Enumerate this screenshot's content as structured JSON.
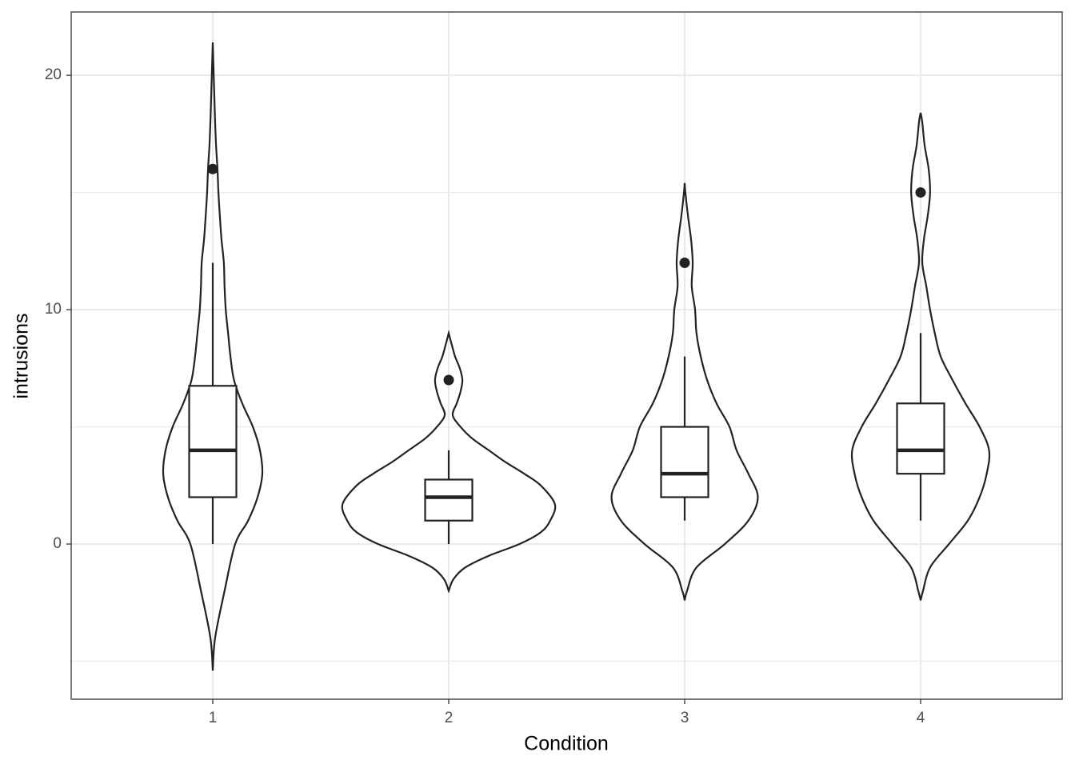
{
  "chart_data": {
    "type": "violin",
    "xlabel": "Condition",
    "ylabel": "intrusions",
    "categories": [
      "1",
      "2",
      "3",
      "4"
    ],
    "ylim": [
      -6.62,
      22.7
    ],
    "yticks": [
      0,
      10,
      20
    ],
    "minor_yticks": [
      -5,
      5,
      15
    ],
    "grid": true,
    "color": "#222222",
    "boxes": [
      {
        "whisker_low": 0,
        "q1": 2,
        "median": 4,
        "q3": 6.75,
        "whisker_high": 12,
        "outliers": [
          16
        ]
      },
      {
        "whisker_low": 0,
        "q1": 1,
        "median": 2,
        "q3": 2.75,
        "whisker_high": 4,
        "outliers": [
          7
        ]
      },
      {
        "whisker_low": 1,
        "q1": 2,
        "median": 3,
        "q3": 5,
        "whisker_high": 8,
        "outliers": [
          12
        ]
      },
      {
        "whisker_low": 1,
        "q1": 3,
        "median": 4,
        "q3": 6,
        "whisker_high": 9,
        "outliers": [
          15
        ]
      }
    ],
    "violins": [
      {
        "y": [
          -5.4,
          -4,
          -2,
          0,
          1,
          2,
          3,
          4,
          5,
          6,
          7,
          8,
          9,
          10,
          11,
          12,
          13,
          14,
          15,
          16,
          17,
          18,
          19,
          20,
          21.4
        ],
        "width": [
          0,
          0.01,
          0.05,
          0.095,
          0.15,
          0.19,
          0.21,
          0.2,
          0.17,
          0.125,
          0.09,
          0.075,
          0.065,
          0.055,
          0.05,
          0.047,
          0.037,
          0.03,
          0.024,
          0.02,
          0.014,
          0.01,
          0.007,
          0.004,
          0
        ]
      },
      {
        "y": [
          -2,
          -1.5,
          -1,
          -0.5,
          0,
          0.5,
          1,
          1.7,
          2.5,
          3,
          3.5,
          4,
          4.5,
          5,
          5.5,
          6,
          6.5,
          7,
          7.5,
          8,
          8.5,
          9
        ],
        "width": [
          0,
          0.02,
          0.07,
          0.17,
          0.3,
          0.39,
          0.43,
          0.45,
          0.39,
          0.32,
          0.24,
          0.17,
          0.1,
          0.05,
          0.017,
          0.034,
          0.05,
          0.058,
          0.047,
          0.027,
          0.013,
          0
        ]
      },
      {
        "y": [
          -2.4,
          -2,
          -1,
          0,
          1,
          2,
          3,
          4,
          5,
          6,
          7,
          8,
          9,
          10,
          11,
          12,
          13,
          14,
          15,
          15.4
        ],
        "width": [
          0,
          0.01,
          0.05,
          0.17,
          0.27,
          0.31,
          0.27,
          0.22,
          0.19,
          0.135,
          0.095,
          0.068,
          0.05,
          0.044,
          0.03,
          0.034,
          0.027,
          0.014,
          0.003,
          0
        ]
      },
      {
        "y": [
          -2.4,
          -2,
          -1,
          0,
          1,
          2,
          3,
          4,
          5,
          6,
          7,
          8,
          9,
          10,
          11,
          12,
          13,
          14,
          15,
          16,
          17,
          18,
          18.4
        ],
        "width": [
          0,
          0.01,
          0.04,
          0.12,
          0.2,
          0.25,
          0.28,
          0.29,
          0.25,
          0.19,
          0.135,
          0.085,
          0.06,
          0.04,
          0.024,
          0.007,
          0.014,
          0.03,
          0.04,
          0.034,
          0.017,
          0.007,
          0
        ]
      }
    ]
  }
}
